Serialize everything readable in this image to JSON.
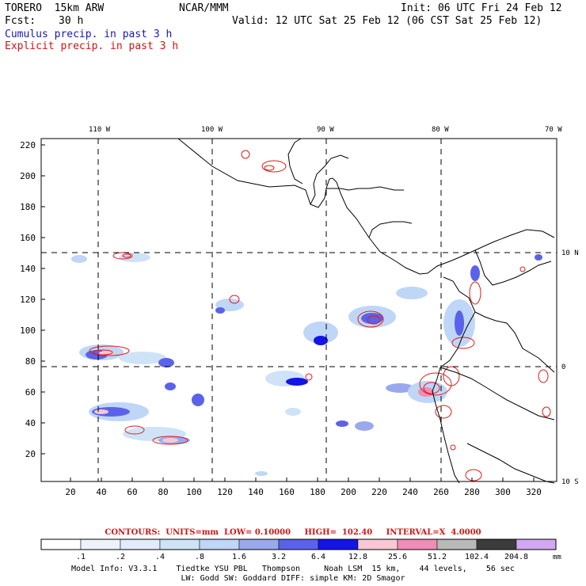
{
  "header": {
    "model": "TORERO  15km ARW",
    "center": "NCAR/MMM",
    "init": "Init: 06 UTC Fri 24 Feb 12",
    "fcst_label": "Fcst:",
    "fcst_value": "30 h",
    "valid": "Valid: 12 UTC Sat 25 Feb 12 (06 CST Sat 25 Feb 12)",
    "cumulus": "Cumulus precip. in past 3 h",
    "explicit": "Explicit precip. in past 3 h"
  },
  "map": {
    "top_lon_labels": [
      "110 W",
      "100 W",
      "90 W",
      "80 W",
      "70 W"
    ],
    "right_lat_labels": [
      "10 N",
      "0",
      "10 S"
    ],
    "y_ticks": [
      "20",
      "40",
      "60",
      "80",
      "100",
      "120",
      "140",
      "160",
      "180",
      "200",
      "220"
    ],
    "x_ticks": [
      "20",
      "40",
      "60",
      "80",
      "100",
      "120",
      "140",
      "160",
      "180",
      "200",
      "220",
      "240",
      "260",
      "280",
      "300",
      "320"
    ],
    "colors": {
      "coast": "#000000",
      "grid": "#000000",
      "explicit_contour": "#e01a1a"
    }
  },
  "contours_text": {
    "prefix": "CONTOURS:",
    "units": "UNITS=mm",
    "low": "LOW= 0.10000",
    "high": "HIGH=  102.40",
    "interval": "INTERVAL=X  4.0000"
  },
  "colorbar": {
    "labels": [
      ".1",
      ".2",
      ".4",
      ".8",
      "1.6",
      "3.2",
      "6.4",
      "12.8",
      "25.6",
      "51.2",
      "102.4",
      "204.8"
    ],
    "unit": "mm",
    "colors": [
      "#ffffff",
      "#eef3fb",
      "#e2ecf9",
      "#cfe3f7",
      "#bfd6f6",
      "#9aa9ee",
      "#5b62ea",
      "#1414e6",
      "#f7c8d3",
      "#f08cb5",
      "#b9b9b9",
      "#3c3c3c",
      "#d2a8f2"
    ]
  },
  "footer": {
    "line1": "Model Info: V3.3.1    Tiedtke YSU PBL   Thompson     Noah LSM  15 km,    44 levels,    56 sec",
    "line2": "LW: Godd SW: Goddard DIFF: simple KM: 2D Smagor"
  }
}
